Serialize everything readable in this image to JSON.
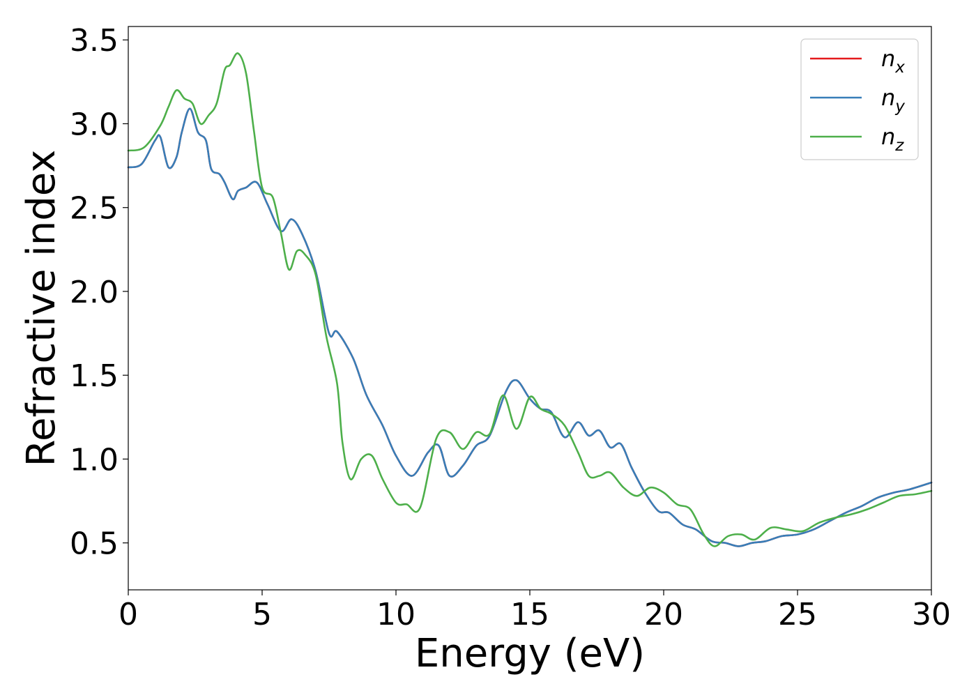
{
  "chart_data": {
    "type": "line",
    "title": "",
    "xlabel": "Energy (eV)",
    "ylabel": "Refractive index",
    "xlim": [
      0,
      30
    ],
    "ylim": [
      0.22,
      3.58
    ],
    "xticks": [
      0,
      5,
      10,
      15,
      20,
      25,
      30
    ],
    "yticks": [
      0.5,
      1.0,
      1.5,
      2.0,
      2.5,
      3.0,
      3.5
    ],
    "xtick_labels": [
      "0",
      "5",
      "10",
      "15",
      "20",
      "25",
      "30"
    ],
    "ytick_labels": [
      "0.5",
      "1.0",
      "1.5",
      "2.0",
      "2.5",
      "3.0",
      "3.5"
    ],
    "grid": false,
    "legend_position": "top-right",
    "legend": [
      {
        "base": "n",
        "sub": "x",
        "color": "#e41a1c"
      },
      {
        "base": "n",
        "sub": "y",
        "color": "#377eb8"
      },
      {
        "base": "n",
        "sub": "z",
        "color": "#4daf4a"
      }
    ],
    "series": [
      {
        "name": "n_x",
        "color": "#e41a1c",
        "x": [
          0,
          0.5,
          1.0,
          1.2,
          1.5,
          1.8,
          2.0,
          2.3,
          2.6,
          2.9,
          3.1,
          3.4,
          3.6,
          3.9,
          4.1,
          4.4,
          4.8,
          5.2,
          5.7,
          6.1,
          6.5,
          7.0,
          7.5,
          7.8,
          8.4,
          8.9,
          9.5,
          10.0,
          10.6,
          11.2,
          11.6,
          12.0,
          12.5,
          13.0,
          13.5,
          14.1,
          14.5,
          15.0,
          15.4,
          15.8,
          16.3,
          16.8,
          17.2,
          17.6,
          18.0,
          18.4,
          18.8,
          19.3,
          19.8,
          20.2,
          20.7,
          21.2,
          21.8,
          22.3,
          22.8,
          23.3,
          23.8,
          24.4,
          25.0,
          25.6,
          26.2,
          26.8,
          27.4,
          28.0,
          28.6,
          29.2,
          30.0
        ],
        "y": [
          2.74,
          2.76,
          2.9,
          2.92,
          2.74,
          2.8,
          2.95,
          3.09,
          2.95,
          2.9,
          2.73,
          2.7,
          2.65,
          2.55,
          2.6,
          2.62,
          2.65,
          2.52,
          2.36,
          2.43,
          2.34,
          2.12,
          1.75,
          1.76,
          1.6,
          1.38,
          1.2,
          1.02,
          0.9,
          1.04,
          1.08,
          0.9,
          0.96,
          1.08,
          1.14,
          1.4,
          1.47,
          1.36,
          1.3,
          1.28,
          1.13,
          1.22,
          1.14,
          1.17,
          1.07,
          1.09,
          0.95,
          0.8,
          0.69,
          0.68,
          0.61,
          0.58,
          0.51,
          0.5,
          0.48,
          0.5,
          0.51,
          0.54,
          0.55,
          0.58,
          0.63,
          0.68,
          0.72,
          0.77,
          0.8,
          0.82,
          0.86
        ]
      },
      {
        "name": "n_y",
        "color": "#377eb8",
        "x": [
          0,
          0.5,
          1.0,
          1.2,
          1.5,
          1.8,
          2.0,
          2.3,
          2.6,
          2.9,
          3.1,
          3.4,
          3.6,
          3.9,
          4.1,
          4.4,
          4.8,
          5.2,
          5.7,
          6.1,
          6.5,
          7.0,
          7.5,
          7.8,
          8.4,
          8.9,
          9.5,
          10.0,
          10.6,
          11.2,
          11.6,
          12.0,
          12.5,
          13.0,
          13.5,
          14.1,
          14.5,
          15.0,
          15.4,
          15.8,
          16.3,
          16.8,
          17.2,
          17.6,
          18.0,
          18.4,
          18.8,
          19.3,
          19.8,
          20.2,
          20.7,
          21.2,
          21.8,
          22.3,
          22.8,
          23.3,
          23.8,
          24.4,
          25.0,
          25.6,
          26.2,
          26.8,
          27.4,
          28.0,
          28.6,
          29.2,
          30.0
        ],
        "y": [
          2.74,
          2.76,
          2.9,
          2.92,
          2.74,
          2.8,
          2.95,
          3.09,
          2.95,
          2.9,
          2.73,
          2.7,
          2.65,
          2.55,
          2.6,
          2.62,
          2.65,
          2.52,
          2.36,
          2.43,
          2.34,
          2.12,
          1.75,
          1.76,
          1.6,
          1.38,
          1.2,
          1.02,
          0.9,
          1.04,
          1.08,
          0.9,
          0.96,
          1.08,
          1.14,
          1.4,
          1.47,
          1.36,
          1.3,
          1.28,
          1.13,
          1.22,
          1.14,
          1.17,
          1.07,
          1.09,
          0.95,
          0.8,
          0.69,
          0.68,
          0.61,
          0.58,
          0.51,
          0.5,
          0.48,
          0.5,
          0.51,
          0.54,
          0.55,
          0.58,
          0.63,
          0.68,
          0.72,
          0.77,
          0.8,
          0.82,
          0.86
        ]
      },
      {
        "name": "n_z",
        "color": "#4daf4a",
        "x": [
          0,
          0.6,
          1.2,
          1.5,
          1.8,
          2.1,
          2.4,
          2.7,
          3.0,
          3.3,
          3.6,
          3.8,
          4.1,
          4.4,
          4.7,
          5.0,
          5.4,
          5.7,
          6.0,
          6.3,
          6.6,
          7.0,
          7.4,
          7.8,
          8.0,
          8.3,
          8.7,
          9.1,
          9.5,
          10.0,
          10.4,
          10.9,
          11.5,
          12.0,
          12.5,
          13.0,
          13.5,
          14.0,
          14.5,
          15.0,
          15.4,
          15.8,
          16.3,
          16.8,
          17.2,
          17.6,
          18.0,
          18.5,
          19.0,
          19.5,
          20.0,
          20.5,
          21.0,
          21.5,
          21.9,
          22.4,
          22.9,
          23.4,
          24.0,
          24.6,
          25.2,
          25.8,
          26.4,
          27.0,
          27.6,
          28.2,
          28.8,
          29.4,
          30.0
        ],
        "y": [
          2.84,
          2.86,
          2.99,
          3.1,
          3.2,
          3.15,
          3.12,
          3.0,
          3.05,
          3.12,
          3.32,
          3.35,
          3.42,
          3.3,
          2.95,
          2.62,
          2.56,
          2.35,
          2.13,
          2.24,
          2.22,
          2.1,
          1.73,
          1.45,
          1.1,
          0.88,
          1.0,
          1.02,
          0.88,
          0.74,
          0.73,
          0.71,
          1.12,
          1.16,
          1.06,
          1.16,
          1.15,
          1.38,
          1.18,
          1.37,
          1.3,
          1.27,
          1.2,
          1.04,
          0.9,
          0.9,
          0.92,
          0.83,
          0.78,
          0.83,
          0.8,
          0.73,
          0.7,
          0.55,
          0.48,
          0.54,
          0.55,
          0.52,
          0.59,
          0.58,
          0.57,
          0.62,
          0.65,
          0.67,
          0.7,
          0.74,
          0.78,
          0.79,
          0.81
        ]
      }
    ]
  }
}
